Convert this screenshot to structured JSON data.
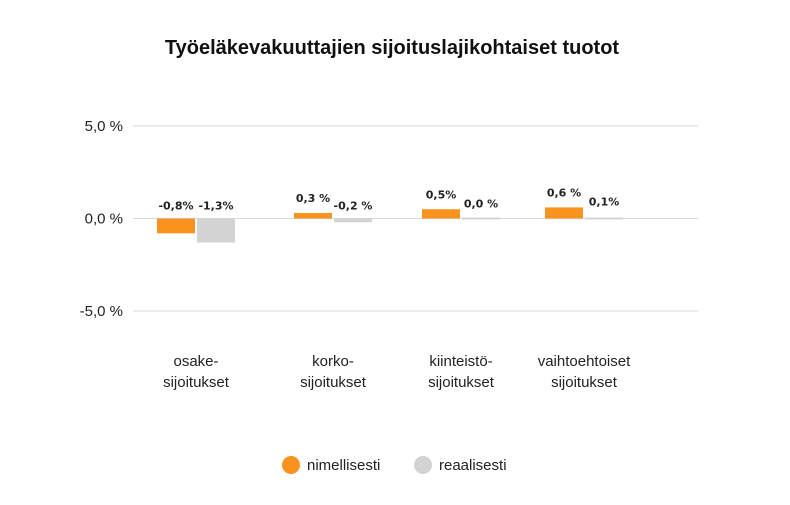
{
  "chart_data": {
    "type": "bar",
    "title": "Työeläkevakuuttajien sijoituslajikohtaiset tuotot",
    "categories": [
      [
        "osake-",
        "sijoitukset"
      ],
      [
        "korko-",
        "sijoitukset"
      ],
      [
        "kiinteistö-",
        "sijoitukset"
      ],
      [
        "vaihtoehtoiset",
        "sijoitukset"
      ]
    ],
    "series": [
      {
        "name": "nimellisesti",
        "color": "#f7931e",
        "values": [
          -0.8,
          0.3,
          0.5,
          0.6
        ],
        "labels": [
          "-0,8%",
          "0,3 %",
          "0,5%",
          "0,6 %"
        ]
      },
      {
        "name": "reaalisesti",
        "color": "#d3d3d3",
        "values": [
          -1.3,
          -0.2,
          0.0,
          0.1
        ],
        "labels": [
          "-1,3%",
          "-0,2 %",
          "0,0 %",
          "0,1%"
        ]
      }
    ],
    "ylim": [
      -5,
      5
    ],
    "yticks": [
      5,
      0,
      -5
    ],
    "ytick_labels": [
      "5,0 %",
      "0,0 %",
      "-5,0 %"
    ],
    "grid": true,
    "legend_position": "bottom",
    "gridline_color": "#d9d9d9"
  }
}
